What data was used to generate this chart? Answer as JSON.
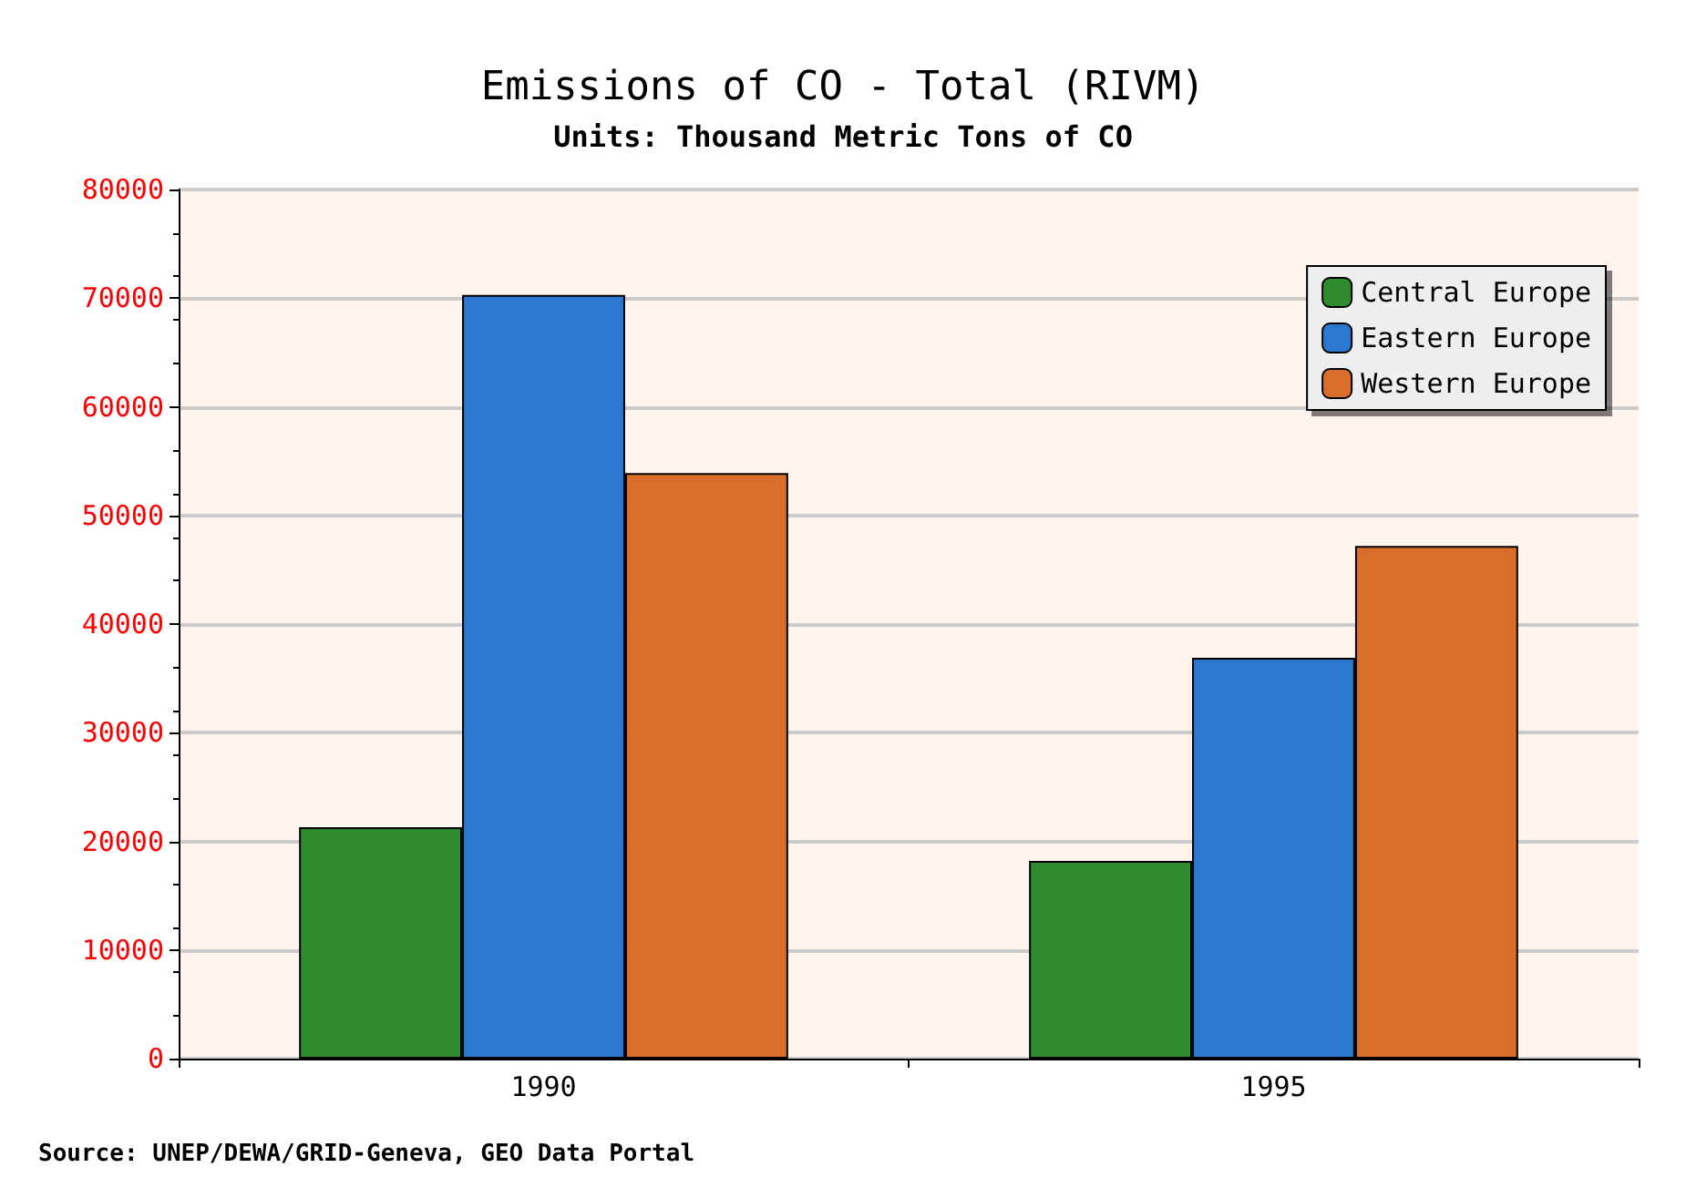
{
  "chart_data": {
    "type": "bar",
    "title": "Emissions of CO - Total (RIVM)",
    "subtitle": "Units: Thousand Metric Tons of CO",
    "categories": [
      "1990",
      "1995"
    ],
    "series": [
      {
        "name": "Central Europe",
        "color": "#2e8b2e",
        "values": [
          21300,
          18200
        ]
      },
      {
        "name": "Eastern Europe",
        "color": "#2a78d0",
        "values": [
          70300,
          36900
        ]
      },
      {
        "name": "Western Europe",
        "color": "#d86e2a",
        "values": [
          53900,
          47200
        ]
      }
    ],
    "ylim": [
      0,
      80000
    ],
    "yticks": [
      0,
      10000,
      20000,
      30000,
      40000,
      50000,
      60000,
      70000,
      80000
    ],
    "grid": "y",
    "legend": "top right",
    "annotations": [
      "Source: UNEP/DEWA/GRID-Geneva, GEO Data Portal"
    ]
  }
}
